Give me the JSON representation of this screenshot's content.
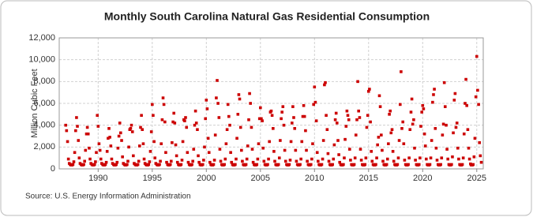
{
  "chart_data": {
    "type": "scatter",
    "title": "Monthly South Carolina Natural Gas Residential Consumption",
    "y_label": "Million Cubic Feet",
    "source": "Source: U.S. Energy Information Administration",
    "color": "#cc0000",
    "grid": true,
    "xlim": [
      1986.4,
      2025.6
    ],
    "xticks": [
      1990,
      1995,
      2000,
      2005,
      2010,
      2015,
      2020,
      2025
    ],
    "ylim": [
      0,
      12000
    ],
    "yticks": [
      0,
      {
        "value": 2000,
        "label": "2,000"
      },
      {
        "value": 4000,
        "label": "4,000"
      },
      {
        "value": 6000,
        "label": "6,000"
      },
      {
        "value": 8000,
        "label": "8,000"
      },
      {
        "value": 10000,
        "label": "10,000"
      },
      {
        "value": 12000,
        "label": "12,000"
      }
    ],
    "x": [
      1987,
      1987.08,
      1987.17,
      1987.25,
      1987.33,
      1987.42,
      1987.5,
      1987.58,
      1987.67,
      1987.75,
      1987.83,
      1987.92,
      1988,
      1988.08,
      1988.17,
      1988.25,
      1988.33,
      1988.42,
      1988.5,
      1988.58,
      1988.67,
      1988.75,
      1988.83,
      1988.92,
      1989,
      1989.08,
      1989.17,
      1989.25,
      1989.33,
      1989.42,
      1989.5,
      1989.58,
      1989.67,
      1989.75,
      1989.83,
      1989.92,
      1990,
      1990.08,
      1990.17,
      1990.25,
      1990.33,
      1990.42,
      1990.5,
      1990.58,
      1990.67,
      1990.75,
      1990.83,
      1990.92,
      1991,
      1991.08,
      1991.17,
      1991.25,
      1991.33,
      1991.42,
      1991.5,
      1991.58,
      1991.67,
      1991.75,
      1991.83,
      1991.92,
      1992,
      1992.08,
      1992.17,
      1992.25,
      1992.33,
      1992.42,
      1992.5,
      1992.58,
      1992.67,
      1992.75,
      1992.83,
      1992.92,
      1993,
      1993.08,
      1993.17,
      1993.25,
      1993.33,
      1993.42,
      1993.5,
      1993.58,
      1993.67,
      1993.75,
      1993.83,
      1993.92,
      1994,
      1994.08,
      1994.17,
      1994.25,
      1994.33,
      1994.42,
      1994.5,
      1994.58,
      1994.67,
      1994.75,
      1994.83,
      1994.92,
      1995,
      1995.08,
      1995.17,
      1995.25,
      1995.33,
      1995.42,
      1995.5,
      1995.58,
      1995.67,
      1995.75,
      1995.83,
      1995.92,
      1996,
      1996.08,
      1996.17,
      1996.25,
      1996.33,
      1996.42,
      1996.5,
      1996.58,
      1996.67,
      1996.75,
      1996.83,
      1996.92,
      1997,
      1997.08,
      1997.17,
      1997.25,
      1997.33,
      1997.42,
      1997.5,
      1997.58,
      1997.67,
      1997.75,
      1997.83,
      1997.92,
      1998,
      1998.08,
      1998.17,
      1998.25,
      1998.33,
      1998.42,
      1998.5,
      1998.58,
      1998.67,
      1998.75,
      1998.83,
      1998.92,
      1999,
      1999.08,
      1999.17,
      1999.25,
      1999.33,
      1999.42,
      1999.5,
      1999.58,
      1999.67,
      1999.75,
      1999.83,
      1999.92,
      2000,
      2000.08,
      2000.17,
      2000.25,
      2000.33,
      2000.42,
      2000.5,
      2000.58,
      2000.67,
      2000.75,
      2000.83,
      2000.92,
      2001,
      2001.08,
      2001.17,
      2001.25,
      2001.33,
      2001.42,
      2001.5,
      2001.58,
      2001.67,
      2001.75,
      2001.83,
      2001.92,
      2002,
      2002.08,
      2002.17,
      2002.25,
      2002.33,
      2002.42,
      2002.5,
      2002.58,
      2002.67,
      2002.75,
      2002.83,
      2002.92,
      2003,
      2003.08,
      2003.17,
      2003.25,
      2003.33,
      2003.42,
      2003.5,
      2003.58,
      2003.67,
      2003.75,
      2003.83,
      2003.92,
      2004,
      2004.08,
      2004.17,
      2004.25,
      2004.33,
      2004.42,
      2004.5,
      2004.58,
      2004.67,
      2004.75,
      2004.83,
      2004.92,
      2005,
      2005.08,
      2005.17,
      2005.25,
      2005.33,
      2005.42,
      2005.5,
      2005.58,
      2005.67,
      2005.75,
      2005.83,
      2005.92,
      2006,
      2006.08,
      2006.17,
      2006.25,
      2006.33,
      2006.42,
      2006.5,
      2006.58,
      2006.67,
      2006.75,
      2006.83,
      2006.92,
      2007,
      2007.08,
      2007.17,
      2007.25,
      2007.33,
      2007.42,
      2007.5,
      2007.58,
      2007.67,
      2007.75,
      2007.83,
      2007.92,
      2008,
      2008.08,
      2008.17,
      2008.25,
      2008.33,
      2008.42,
      2008.5,
      2008.58,
      2008.67,
      2008.75,
      2008.83,
      2008.92,
      2009,
      2009.08,
      2009.17,
      2009.25,
      2009.33,
      2009.42,
      2009.5,
      2009.58,
      2009.67,
      2009.75,
      2009.83,
      2009.92,
      2010,
      2010.08,
      2010.17,
      2010.25,
      2010.33,
      2010.42,
      2010.5,
      2010.58,
      2010.67,
      2010.75,
      2010.83,
      2010.92,
      2011,
      2011.08,
      2011.17,
      2011.25,
      2011.33,
      2011.42,
      2011.5,
      2011.58,
      2011.67,
      2011.75,
      2011.83,
      2011.92,
      2012,
      2012.08,
      2012.17,
      2012.25,
      2012.33,
      2012.42,
      2012.5,
      2012.58,
      2012.67,
      2012.75,
      2012.83,
      2012.92,
      2013,
      2013.08,
      2013.17,
      2013.25,
      2013.33,
      2013.42,
      2013.5,
      2013.58,
      2013.67,
      2013.75,
      2013.83,
      2013.92,
      2014,
      2014.08,
      2014.17,
      2014.25,
      2014.33,
      2014.42,
      2014.5,
      2014.58,
      2014.67,
      2014.75,
      2014.83,
      2014.92,
      2015,
      2015.08,
      2015.17,
      2015.25,
      2015.33,
      2015.42,
      2015.5,
      2015.58,
      2015.67,
      2015.75,
      2015.83,
      2015.92,
      2016,
      2016.08,
      2016.17,
      2016.25,
      2016.33,
      2016.42,
      2016.5,
      2016.58,
      2016.67,
      2016.75,
      2016.83,
      2016.92,
      2017,
      2017.08,
      2017.17,
      2017.25,
      2017.33,
      2017.42,
      2017.5,
      2017.58,
      2017.67,
      2017.75,
      2017.83,
      2017.92,
      2018,
      2018.08,
      2018.17,
      2018.25,
      2018.33,
      2018.42,
      2018.5,
      2018.58,
      2018.67,
      2018.75,
      2018.83,
      2018.92,
      2019,
      2019.08,
      2019.17,
      2019.25,
      2019.33,
      2019.42,
      2019.5,
      2019.58,
      2019.67,
      2019.75,
      2019.83,
      2019.92,
      2020,
      2020.08,
      2020.17,
      2020.25,
      2020.33,
      2020.42,
      2020.5,
      2020.58,
      2020.67,
      2020.75,
      2020.83,
      2020.92,
      2021,
      2021.08,
      2021.17,
      2021.25,
      2021.33,
      2021.42,
      2021.5,
      2021.58,
      2021.67,
      2021.75,
      2021.83,
      2021.92,
      2022,
      2022.08,
      2022.17,
      2022.25,
      2022.33,
      2022.42,
      2022.5,
      2022.58,
      2022.67,
      2022.75,
      2022.83,
      2022.92,
      2023,
      2023.08,
      2023.17,
      2023.25,
      2023.33,
      2023.42,
      2023.5,
      2023.58,
      2023.67,
      2023.75,
      2023.83,
      2023.92,
      2024,
      2024.08,
      2024.17,
      2024.25,
      2024.33,
      2024.42,
      2024.5,
      2024.58,
      2024.67,
      2024.75,
      2024.83,
      2024.92,
      2025,
      2025.08,
      2025.17,
      2025.25,
      2025.33,
      2025.42
    ],
    "values": [
      4000,
      3500,
      2500,
      900,
      500,
      400,
      350,
      350,
      400,
      650,
      1500,
      3500,
      4700,
      3900,
      2600,
      1000,
      500,
      400,
      350,
      350,
      400,
      700,
      1700,
      3200,
      3800,
      3200,
      1900,
      900,
      500,
      400,
      350,
      350,
      400,
      650,
      1500,
      4900,
      3900,
      2300,
      1700,
      900,
      500,
      400,
      350,
      350,
      400,
      600,
      1600,
      2800,
      3700,
      2900,
      2100,
      900,
      500,
      400,
      350,
      350,
      400,
      600,
      1900,
      3000,
      4200,
      3300,
      2600,
      1100,
      500,
      400,
      350,
      350,
      400,
      700,
      2000,
      3600,
      3700,
      4000,
      3400,
      1200,
      500,
      400,
      350,
      350,
      400,
      700,
      2100,
      3800,
      4900,
      3600,
      2300,
      900,
      500,
      400,
      350,
      350,
      400,
      650,
      1600,
      3400,
      5900,
      4900,
      2500,
      1000,
      500,
      400,
      350,
      350,
      400,
      700,
      2300,
      4500,
      6500,
      5900,
      4300,
      1500,
      600,
      400,
      350,
      350,
      400,
      700,
      2400,
      4300,
      5100,
      4200,
      2200,
      1200,
      600,
      400,
      350,
      350,
      400,
      800,
      2500,
      4500,
      4400,
      4700,
      3800,
      1500,
      600,
      400,
      350,
      350,
      400,
      700,
      1800,
      4000,
      5300,
      4200,
      3600,
      1200,
      600,
      400,
      350,
      350,
      400,
      800,
      2000,
      4600,
      6300,
      5500,
      2800,
      1500,
      600,
      400,
      350,
      350,
      400,
      800,
      3100,
      6500,
      8100,
      6000,
      4700,
      1800,
      700,
      400,
      350,
      350,
      400,
      900,
      2300,
      3600,
      5900,
      4800,
      4000,
      1500,
      600,
      400,
      350,
      350,
      400,
      900,
      2800,
      5000,
      6800,
      6400,
      3800,
      1700,
      700,
      400,
      350,
      350,
      400,
      900,
      2100,
      4500,
      6900,
      6000,
      3800,
      1800,
      600,
      400,
      350,
      350,
      400,
      900,
      2300,
      4600,
      5600,
      4600,
      4400,
      1900,
      700,
      400,
      350,
      350,
      400,
      900,
      2500,
      5200,
      5300,
      4900,
      3700,
      1600,
      700,
      400,
      350,
      350,
      400,
      1000,
      2600,
      4600,
      5200,
      5700,
      4000,
      1700,
      700,
      400,
      350,
      350,
      400,
      800,
      2500,
      4200,
      5700,
      4700,
      3700,
      1700,
      700,
      400,
      350,
      350,
      400,
      900,
      2500,
      4800,
      5800,
      4800,
      3500,
      1700,
      700,
      400,
      350,
      350,
      400,
      900,
      2300,
      5900,
      7500,
      6100,
      4400,
      1500,
      700,
      400,
      350,
      350,
      400,
      900,
      2600,
      7700,
      7900,
      4900,
      3600,
      1400,
      700,
      400,
      350,
      350,
      400,
      900,
      2200,
      4500,
      5100,
      4200,
      2600,
      1300,
      600,
      400,
      350,
      350,
      400,
      1000,
      2700,
      3900,
      5300,
      4900,
      4500,
      1800,
      800,
      400,
      350,
      350,
      400,
      1000,
      3100,
      4500,
      8000,
      5300,
      4700,
      1800,
      800,
      400,
      350,
      350,
      400,
      1000,
      3800,
      4900,
      7100,
      7300,
      4300,
      1600,
      700,
      400,
      350,
      350,
      400,
      1000,
      2200,
      2900,
      6700,
      5700,
      3100,
      1700,
      700,
      400,
      350,
      350,
      400,
      900,
      2300,
      5000,
      5300,
      3300,
      3600,
      1600,
      700,
      400,
      350,
      350,
      400,
      1000,
      2600,
      5900,
      8900,
      3700,
      4300,
      2300,
      800,
      400,
      350,
      350,
      400,
      1000,
      3600,
      5200,
      6400,
      4100,
      4500,
      1900,
      800,
      400,
      350,
      350,
      400,
      1000,
      3900,
      5200,
      5800,
      5500,
      3200,
      2100,
      900,
      400,
      350,
      350,
      400,
      1000,
      2600,
      6100,
      6800,
      7300,
      3700,
      1900,
      800,
      400,
      350,
      350,
      400,
      1000,
      3100,
      4100,
      7900,
      5700,
      4000,
      1800,
      900,
      400,
      350,
      350,
      400,
      1100,
      3300,
      6300,
      6900,
      3800,
      4200,
      1900,
      900,
      400,
      350,
      350,
      400,
      1000,
      3200,
      6000,
      8200,
      5800,
      3600,
      1900,
      900,
      450,
      350,
      350,
      400,
      1100,
      2800,
      6600,
      10300,
      7200,
      5900,
      2400,
      1200,
      600
    ]
  }
}
